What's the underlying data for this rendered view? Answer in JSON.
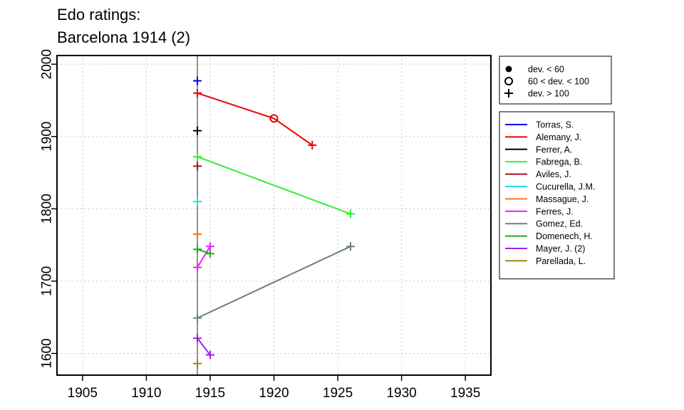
{
  "chart_data": {
    "type": "line",
    "title_lines": [
      "Edo ratings:",
      "Barcelona 1914 (2)"
    ],
    "xlim": [
      1903,
      1937
    ],
    "ylim": [
      1570,
      2012
    ],
    "x_ticks": [
      1905,
      1910,
      1915,
      1920,
      1925,
      1930,
      1935
    ],
    "y_ticks": [
      1600,
      1700,
      1800,
      1900,
      2000
    ],
    "grid": true,
    "event_line_x": 1914,
    "legend_position": "right",
    "marker_legend": [
      {
        "marker": "dot",
        "label": "dev. < 60"
      },
      {
        "marker": "circle",
        "label": "60 < dev. < 100"
      },
      {
        "marker": "plus",
        "label": "dev. > 100"
      }
    ],
    "series": [
      {
        "name": "Torras, S.",
        "color": "#0000ee",
        "points": [
          {
            "x": 1914,
            "y": 1977,
            "marker": "plus"
          }
        ]
      },
      {
        "name": "Alemany, J.",
        "color": "#ee0000",
        "points": [
          {
            "x": 1914,
            "y": 1960,
            "marker": "plus"
          },
          {
            "x": 1920,
            "y": 1925,
            "marker": "circle"
          },
          {
            "x": 1923,
            "y": 1888,
            "marker": "plus"
          }
        ]
      },
      {
        "name": "Ferrer, A.",
        "color": "#000000",
        "points": [
          {
            "x": 1914,
            "y": 1908,
            "marker": "plus"
          }
        ]
      },
      {
        "name": "Fabrega, B.",
        "color": "#33ee33",
        "points": [
          {
            "x": 1914,
            "y": 1872,
            "marker": "plus"
          },
          {
            "x": 1926,
            "y": 1793,
            "marker": "plus"
          }
        ]
      },
      {
        "name": "Aviles, J.",
        "color": "#aa1122",
        "points": [
          {
            "x": 1914,
            "y": 1859,
            "marker": "plus"
          }
        ]
      },
      {
        "name": "Cucurella, J.M.",
        "color": "#22ddee",
        "points": [
          {
            "x": 1914,
            "y": 1810,
            "marker": "plus"
          }
        ]
      },
      {
        "name": "Massague, J.",
        "color": "#ee7722",
        "points": [
          {
            "x": 1914,
            "y": 1765,
            "marker": "plus"
          }
        ]
      },
      {
        "name": "Ferres, J.",
        "color": "#ee22ee",
        "points": [
          {
            "x": 1914,
            "y": 1719,
            "marker": "plus"
          },
          {
            "x": 1915,
            "y": 1748,
            "marker": "plus"
          }
        ]
      },
      {
        "name": "Gomez, Ed.",
        "color": "#6b8080",
        "points": [
          {
            "x": 1914,
            "y": 1649,
            "marker": "plus"
          },
          {
            "x": 1926,
            "y": 1748,
            "marker": "plus"
          }
        ]
      },
      {
        "name": "Domenech, H.",
        "color": "#22aa22",
        "points": [
          {
            "x": 1914,
            "y": 1744,
            "marker": "plus"
          },
          {
            "x": 1915,
            "y": 1738,
            "marker": "plus"
          }
        ]
      },
      {
        "name": "Mayer, J. (2)",
        "color": "#9922ee",
        "points": [
          {
            "x": 1914,
            "y": 1621,
            "marker": "plus"
          },
          {
            "x": 1915,
            "y": 1598,
            "marker": "plus"
          }
        ]
      },
      {
        "name": "Parellada, L.",
        "color": "#998811",
        "points": [
          {
            "x": 1914,
            "y": 1586,
            "marker": "plus"
          }
        ]
      }
    ]
  }
}
